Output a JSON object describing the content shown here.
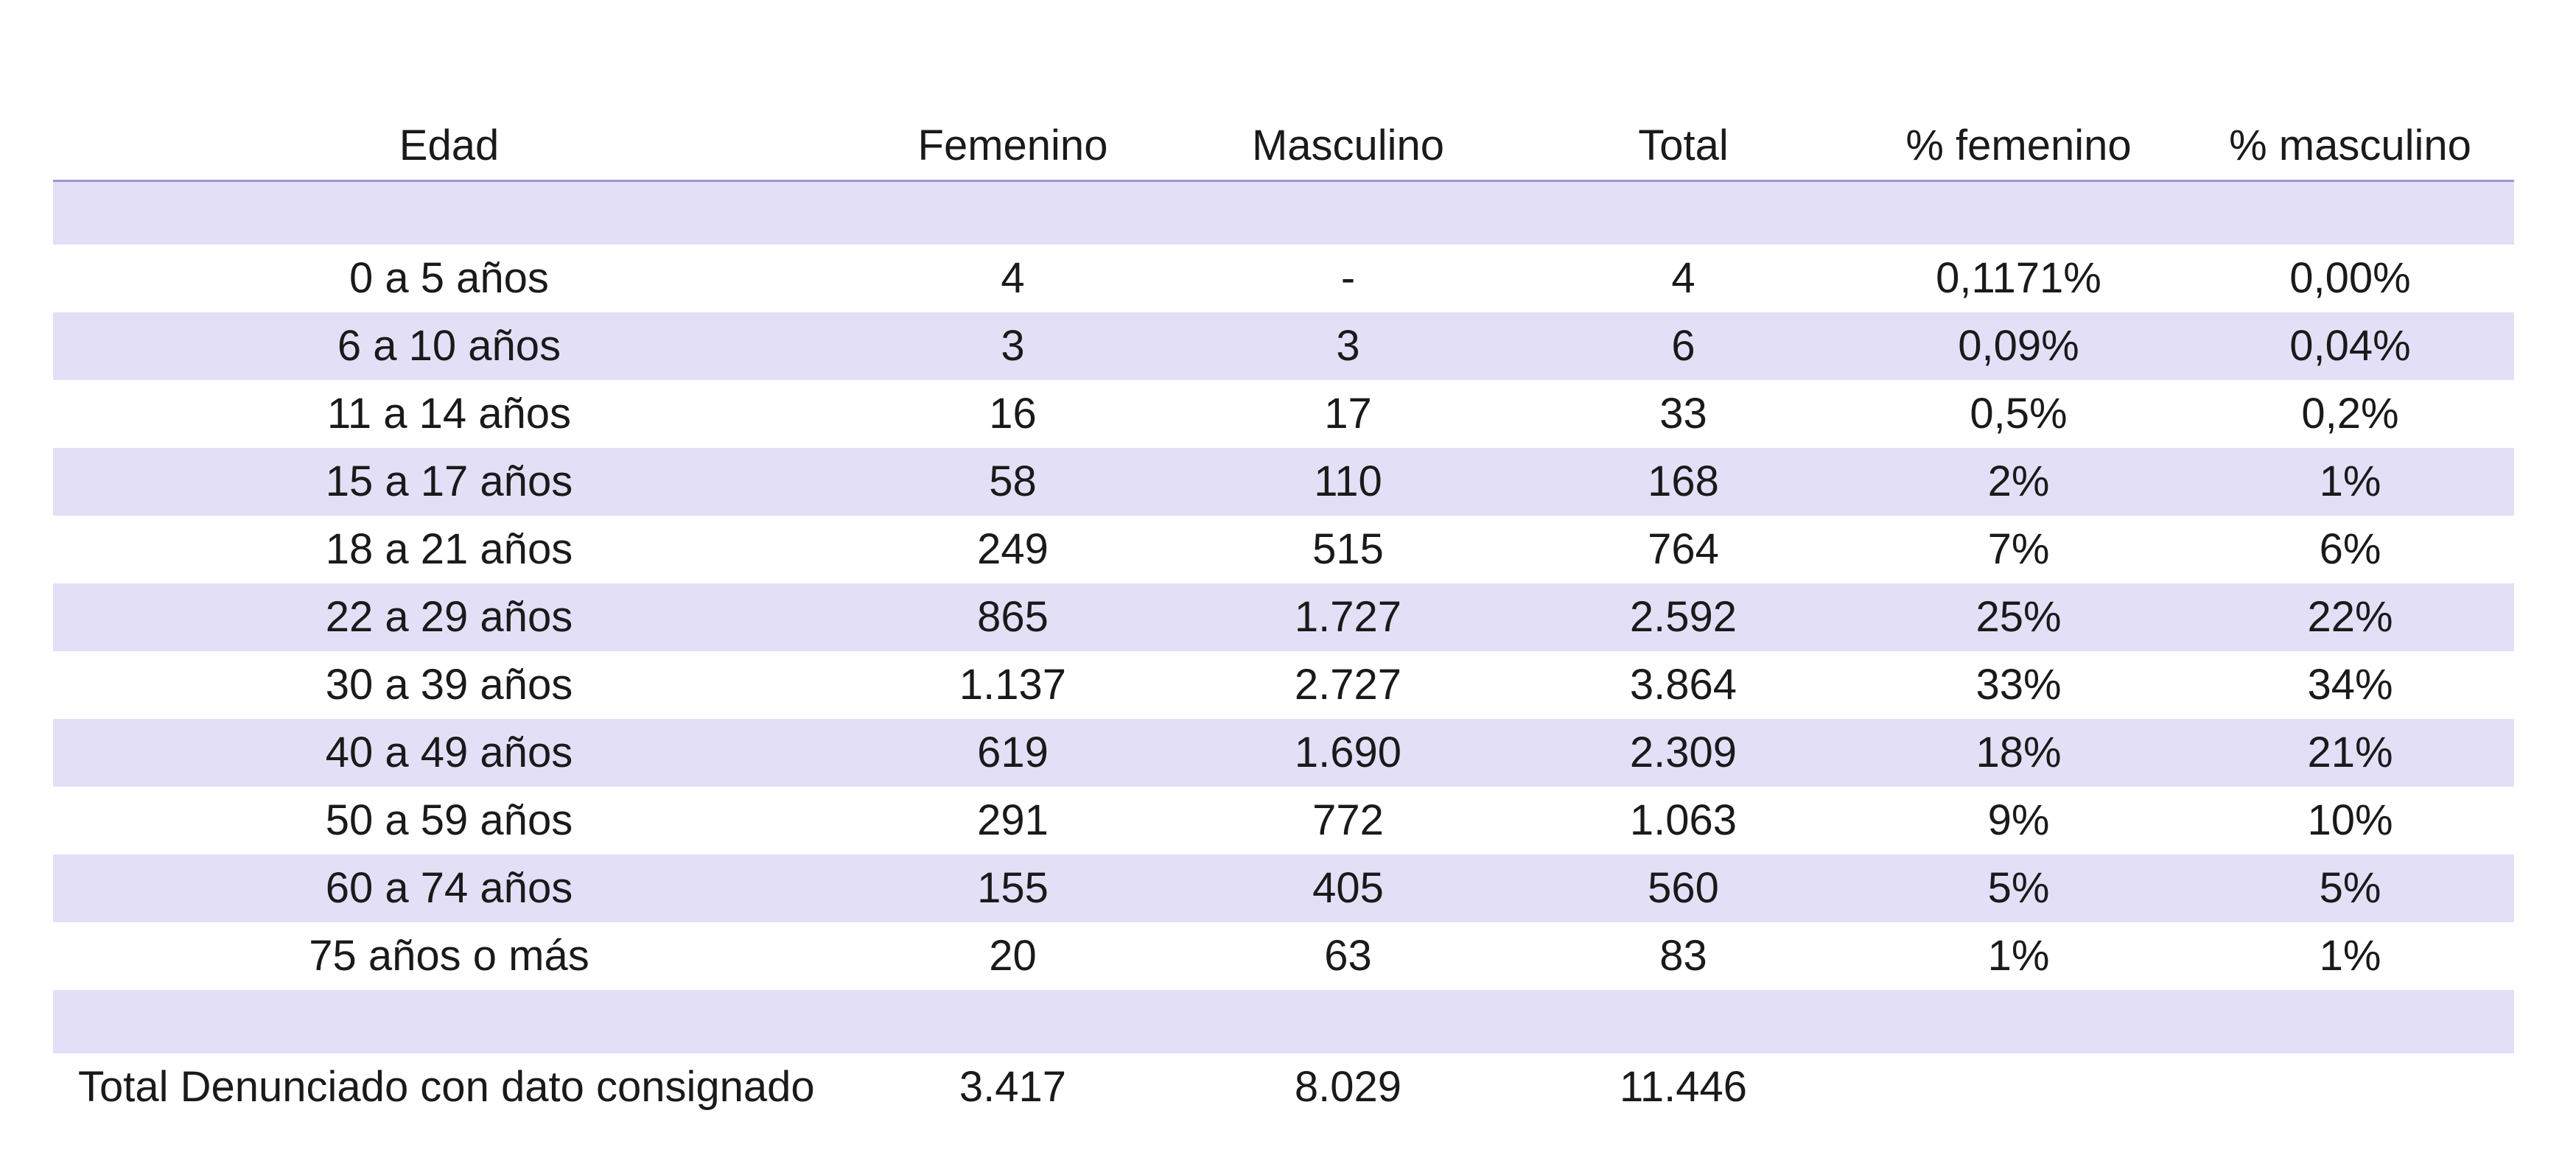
{
  "table": {
    "headers": [
      "Edad",
      "Femenino",
      "Masculino",
      "Total",
      "% femenino",
      "% masculino"
    ],
    "rows": [
      [
        "0 a 5 años",
        "4",
        "-",
        "4",
        "0,1171%",
        "0,00%"
      ],
      [
        "6 a 10 años",
        "3",
        "3",
        "6",
        "0,09%",
        "0,04%"
      ],
      [
        "11 a 14 años",
        "16",
        "17",
        "33",
        "0,5%",
        "0,2%"
      ],
      [
        "15 a 17 años",
        "58",
        "110",
        "168",
        "2%",
        "1%"
      ],
      [
        "18 a 21 años",
        "249",
        "515",
        "764",
        "7%",
        "6%"
      ],
      [
        "22 a 29 años",
        "865",
        "1.727",
        "2.592",
        "25%",
        "22%"
      ],
      [
        "30 a 39 años",
        "1.137",
        "2.727",
        "3.864",
        "33%",
        "34%"
      ],
      [
        "40 a 49 años",
        "619",
        "1.690",
        "2.309",
        "18%",
        "21%"
      ],
      [
        "50 a 59 años",
        "291",
        "772",
        "1.063",
        "9%",
        "10%"
      ],
      [
        "60 a 74 años",
        "155",
        "405",
        "560",
        "5%",
        "5%"
      ],
      [
        "75 años o más",
        "20",
        "63",
        "83",
        "1%",
        "1%"
      ]
    ],
    "total": {
      "label": "Total Denunciado con dato consignado",
      "femenino": "3.417",
      "masculino": "8.029",
      "total": "11.446"
    }
  },
  "colors": {
    "band": "#e2dff7",
    "header_rule": "#9c94d0",
    "text": "#1a1a1a"
  }
}
